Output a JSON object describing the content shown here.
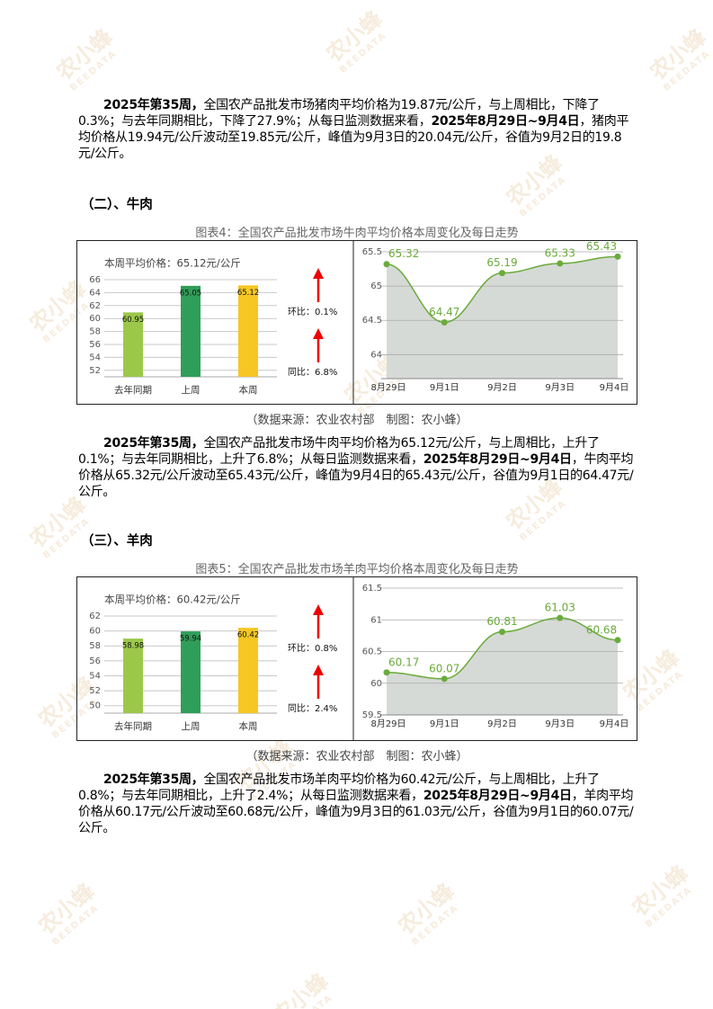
{
  "watermark": {
    "logo": "农小蜂",
    "sub": "BEEDATA"
  },
  "intro": [
    {
      "text": "2025年第35周，",
      "bold": true
    },
    {
      "text": "全国农产品批发市场猪肉平均价格为19.87元/公斤，与上周相比，下降了0.3%；与去年同期相比，下降了27.9%；从每日监测数据来看，",
      "bold": false
    },
    {
      "text": "2025年8月29日~9月4日",
      "bold": true
    },
    {
      "text": "，猪肉平均价格从19.94元/公斤波动至19.85元/公斤，峰值为9月3日的20.04元/公斤，谷值为9月2日的19.8元/公斤。",
      "bold": false
    }
  ],
  "sections": [
    {
      "heading": "（二）、牛肉",
      "figure_title": "图表4：全国农产品批发市场牛肉平均价格本周变化及每日走势",
      "bar_chart": {
        "type": "bar",
        "title": "本周平均价格：65.12元/公斤",
        "categories": [
          "去年同期",
          "上周",
          "本周"
        ],
        "values": [
          60.95,
          65.05,
          65.12
        ],
        "colors": [
          "#9cc84a",
          "#2f9e58",
          "#f6c623"
        ],
        "ylim": [
          51,
          66
        ],
        "yticks": [
          52,
          54,
          56,
          58,
          60,
          62,
          64,
          66
        ],
        "grid": true,
        "annotations": [
          "环比：0.1%",
          "同比：6.8%"
        ]
      },
      "line_chart": {
        "type": "line",
        "x": [
          "8月29日",
          "9月1日",
          "9月2日",
          "9月3日",
          "9月4日"
        ],
        "values": [
          65.32,
          64.47,
          65.19,
          65.33,
          65.43
        ],
        "color": "#6aab3b",
        "ylim": [
          63.65,
          65.5
        ],
        "yticks": [
          64,
          64.5,
          65,
          65.5
        ],
        "grid": true
      },
      "source": "（数据来源：农业农村部　制图：农小蜂）",
      "paragraph": [
        {
          "text": "2025年第35周，",
          "bold": true
        },
        {
          "text": "全国农产品批发市场牛肉平均价格为65.12元/公斤，与上周相比，上升了0.1%；与去年同期相比，上升了6.8%；从每日监测数据来看，",
          "bold": false
        },
        {
          "text": "2025年8月29日~9月4日",
          "bold": true
        },
        {
          "text": "，牛肉平均价格从65.32元/公斤波动至65.43元/公斤，峰值为9月4日的65.43元/公斤，谷值为9月1日的64.47元/公斤。",
          "bold": false
        }
      ]
    },
    {
      "heading": "（三）、羊肉",
      "figure_title": "图表5：全国农产品批发市场羊肉平均价格本周变化及每日走势",
      "bar_chart": {
        "type": "bar",
        "title": "本周平均价格：60.42元/公斤",
        "categories": [
          "去年同期",
          "上周",
          "本周"
        ],
        "values": [
          58.98,
          59.94,
          60.42
        ],
        "colors": [
          "#9cc84a",
          "#2f9e58",
          "#f6c623"
        ],
        "ylim": [
          49,
          62
        ],
        "yticks": [
          50,
          52,
          54,
          56,
          58,
          60,
          62
        ],
        "grid": true,
        "annotations": [
          "环比：0.8%",
          "同比：2.4%"
        ]
      },
      "line_chart": {
        "type": "line",
        "x": [
          "8月29日",
          "9月1日",
          "9月2日",
          "9月3日",
          "9月4日"
        ],
        "values": [
          60.17,
          60.07,
          60.81,
          61.03,
          60.68
        ],
        "color": "#6aab3b",
        "ylim": [
          59.5,
          61.5
        ],
        "yticks": [
          59.5,
          60,
          60.5,
          61,
          61.5
        ],
        "grid": true
      },
      "source": "（数据来源：农业农村部　制图：农小蜂）",
      "paragraph": [
        {
          "text": "2025年第35周，",
          "bold": true
        },
        {
          "text": "全国农产品批发市场羊肉平均价格为60.42元/公斤，与上周相比，上升了0.8%；与去年同期相比，上升了2.4%；从每日监测数据来看，",
          "bold": false
        },
        {
          "text": "2025年8月29日~9月4日",
          "bold": true
        },
        {
          "text": "，羊肉平均价格从60.17元/公斤波动至60.68元/公斤，峰值为9月3日的61.03元/公斤，谷值为9月1日的60.07元/公斤。",
          "bold": false
        }
      ]
    }
  ]
}
